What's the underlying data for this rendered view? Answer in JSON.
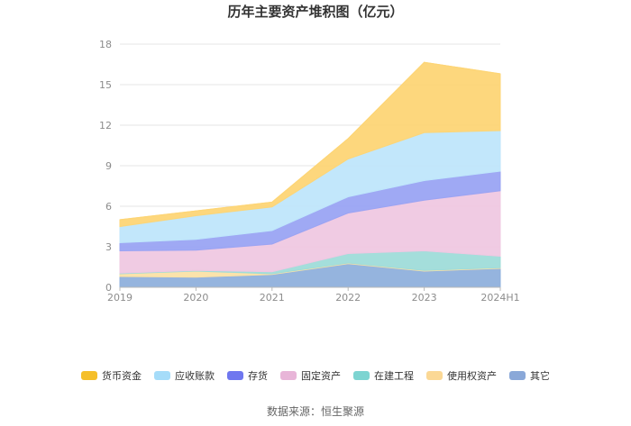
{
  "chart_data": {
    "type": "area",
    "title": "历年主要资产堆积图（亿元）",
    "x": [
      "2019",
      "2020",
      "2021",
      "2022",
      "2023",
      "2024H1"
    ],
    "ylim": [
      0,
      18
    ],
    "yticks": [
      0,
      3,
      6,
      9,
      12,
      15,
      18
    ],
    "grid": true,
    "legend_position": "bottom",
    "stacked": true,
    "series": [
      {
        "name": "其它",
        "color": "#8fb0dc",
        "values": [
          0.8,
          0.75,
          0.95,
          1.75,
          1.2,
          1.4
        ]
      },
      {
        "name": "使用权资产",
        "color": "#fbe1a6",
        "values": [
          0.2,
          0.45,
          0.05,
          0.05,
          0.05,
          0.05
        ]
      },
      {
        "name": "在建工程",
        "color": "#9fdcd9",
        "values": [
          0.05,
          0.05,
          0.15,
          0.7,
          1.45,
          0.85
        ]
      },
      {
        "name": "固定资产",
        "color": "#efc8e2",
        "values": [
          1.65,
          1.5,
          2.05,
          3.0,
          3.75,
          4.85
        ]
      },
      {
        "name": "存货",
        "color": "#9aa4f3",
        "values": [
          0.6,
          0.8,
          1.0,
          1.2,
          1.45,
          1.45
        ]
      },
      {
        "name": "应收账款",
        "color": "#bfe6fb",
        "values": [
          1.2,
          1.75,
          1.75,
          2.8,
          3.55,
          3.0
        ]
      },
      {
        "name": "货币资金",
        "color": "#fdd576",
        "values": [
          0.5,
          0.35,
          0.35,
          1.5,
          5.2,
          4.2
        ]
      }
    ],
    "legend_order": [
      "货币资金",
      "应收账款",
      "存货",
      "固定资产",
      "在建工程",
      "使用权资产",
      "其它"
    ],
    "legend_colors": {
      "货币资金": "#f5bf2a",
      "应收账款": "#a5dcf9",
      "存货": "#6f77ef",
      "固定资产": "#e8b5d8",
      "在建工程": "#7dd4d1",
      "使用权资产": "#fbd895",
      "其它": "#8aa8d8"
    }
  },
  "footer": {
    "source": "数据来源：恒生聚源"
  }
}
